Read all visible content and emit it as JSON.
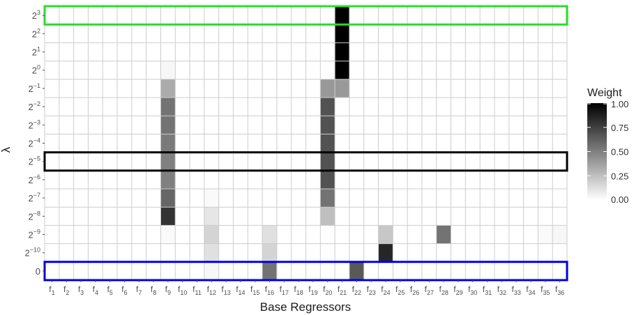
{
  "chart_data": {
    "type": "heatmap",
    "xlabel": "Base Regressors",
    "ylabel": "λ",
    "x_categories": [
      "f1",
      "f2",
      "f3",
      "f4",
      "f5",
      "f6",
      "f7",
      "f8",
      "f9",
      "f10",
      "f11",
      "f12",
      "f13",
      "f14",
      "f15",
      "f16",
      "f17",
      "f18",
      "f19",
      "f20",
      "f21",
      "f22",
      "f23",
      "f24",
      "f25",
      "f26",
      "f27",
      "f28",
      "f29",
      "f30",
      "f31",
      "f32",
      "f33",
      "f34",
      "f35",
      "f36"
    ],
    "y_categories": [
      {
        "label": "2",
        "sup": "3"
      },
      {
        "label": "2",
        "sup": "2"
      },
      {
        "label": "2",
        "sup": "1"
      },
      {
        "label": "2",
        "sup": "0"
      },
      {
        "label": "2",
        "sup": "−1"
      },
      {
        "label": "2",
        "sup": "−2"
      },
      {
        "label": "2",
        "sup": "−3"
      },
      {
        "label": "2",
        "sup": "−4"
      },
      {
        "label": "2",
        "sup": "−5"
      },
      {
        "label": "2",
        "sup": "−6"
      },
      {
        "label": "2",
        "sup": "−7"
      },
      {
        "label": "2",
        "sup": "−8"
      },
      {
        "label": "2",
        "sup": "−9"
      },
      {
        "label": "2",
        "sup": "−10"
      },
      {
        "label": "0",
        "sup": ""
      }
    ],
    "weights": [
      [
        0,
        0,
        0,
        0,
        0,
        0,
        0,
        0,
        0,
        0,
        0,
        0,
        0,
        0,
        0,
        0,
        0,
        0,
        0,
        0,
        1.0,
        0,
        0,
        0,
        0,
        0,
        0,
        0,
        0,
        0,
        0,
        0,
        0,
        0,
        0,
        0
      ],
      [
        0,
        0,
        0,
        0,
        0,
        0,
        0,
        0,
        0,
        0,
        0,
        0,
        0,
        0,
        0,
        0,
        0,
        0,
        0,
        0,
        1.0,
        0,
        0,
        0,
        0,
        0,
        0,
        0,
        0,
        0,
        0,
        0,
        0,
        0,
        0,
        0
      ],
      [
        0,
        0,
        0,
        0,
        0,
        0,
        0,
        0,
        0,
        0,
        0,
        0,
        0,
        0,
        0,
        0,
        0,
        0,
        0,
        0,
        1.0,
        0,
        0,
        0,
        0,
        0,
        0,
        0,
        0,
        0,
        0,
        0,
        0,
        0,
        0,
        0
      ],
      [
        0,
        0,
        0,
        0,
        0,
        0,
        0,
        0,
        0.03,
        0,
        0,
        0,
        0,
        0,
        0,
        0,
        0,
        0,
        0,
        0,
        1.0,
        0,
        0,
        0,
        0,
        0,
        0,
        0,
        0,
        0,
        0,
        0,
        0,
        0,
        0,
        0
      ],
      [
        0,
        0,
        0,
        0,
        0,
        0,
        0,
        0,
        0.33,
        0,
        0,
        0,
        0,
        0,
        0,
        0,
        0,
        0,
        0,
        0.4,
        0.4,
        0,
        0,
        0,
        0,
        0,
        0,
        0,
        0,
        0,
        0,
        0,
        0,
        0,
        0,
        0
      ],
      [
        0,
        0,
        0,
        0,
        0,
        0,
        0,
        0,
        0.55,
        0,
        0,
        0,
        0,
        0,
        0,
        0,
        0,
        0,
        0,
        0.68,
        0,
        0,
        0,
        0,
        0,
        0,
        0,
        0,
        0,
        0,
        0,
        0,
        0,
        0,
        0,
        0
      ],
      [
        0,
        0,
        0,
        0,
        0,
        0,
        0,
        0,
        0.55,
        0,
        0,
        0,
        0,
        0,
        0,
        0,
        0,
        0,
        0,
        0.68,
        0,
        0,
        0,
        0,
        0,
        0,
        0,
        0,
        0,
        0,
        0,
        0,
        0,
        0,
        0,
        0
      ],
      [
        0,
        0,
        0,
        0,
        0,
        0,
        0,
        0,
        0.52,
        0,
        0,
        0,
        0,
        0,
        0,
        0,
        0,
        0,
        0,
        0.68,
        0,
        0,
        0,
        0,
        0,
        0,
        0,
        0,
        0,
        0,
        0,
        0,
        0,
        0,
        0,
        0
      ],
      [
        0,
        0,
        0,
        0,
        0,
        0,
        0,
        0,
        0.5,
        0,
        0,
        0,
        0,
        0,
        0,
        0,
        0,
        0,
        0,
        0.68,
        0,
        0,
        0,
        0,
        0,
        0,
        0,
        0,
        0,
        0,
        0,
        0,
        0,
        0,
        0,
        0
      ],
      [
        0,
        0,
        0,
        0,
        0,
        0,
        0,
        0,
        0.5,
        0,
        0,
        0,
        0,
        0,
        0,
        0,
        0,
        0,
        0,
        0.68,
        0,
        0,
        0,
        0,
        0,
        0,
        0,
        0,
        0,
        0,
        0,
        0,
        0,
        0,
        0,
        0
      ],
      [
        0,
        0,
        0,
        0,
        0,
        0,
        0,
        0,
        0.6,
        0,
        0,
        0.02,
        0,
        0,
        0,
        0,
        0,
        0,
        0,
        0.55,
        0,
        0,
        0,
        0,
        0,
        0,
        0,
        0,
        0,
        0,
        0,
        0,
        0,
        0,
        0,
        0
      ],
      [
        0,
        0,
        0,
        0,
        0,
        0,
        0,
        0,
        0.8,
        0,
        0,
        0.1,
        0,
        0,
        0,
        0,
        0,
        0,
        0,
        0.25,
        0,
        0,
        0,
        0,
        0,
        0,
        0,
        0,
        0,
        0,
        0,
        0,
        0,
        0,
        0,
        0
      ],
      [
        0,
        0,
        0,
        0,
        0,
        0,
        0,
        0,
        0.02,
        0,
        0,
        0.17,
        0,
        0,
        0,
        0.12,
        0,
        0,
        0,
        0,
        0,
        0,
        0,
        0.22,
        0,
        0,
        0,
        0.55,
        0,
        0,
        0,
        0,
        0,
        0,
        0.02,
        0.03
      ],
      [
        0,
        0,
        0,
        0,
        0,
        0,
        0,
        0,
        0,
        0,
        0,
        0.12,
        0,
        0,
        0,
        0.17,
        0,
        0,
        0,
        0,
        0,
        0,
        0,
        0.85,
        0,
        0,
        0,
        0,
        0,
        0,
        0,
        0,
        0,
        0,
        0,
        0
      ],
      [
        0,
        0,
        0,
        0,
        0,
        0,
        0,
        0,
        0,
        0,
        0,
        0.03,
        0,
        0,
        0,
        0.55,
        0,
        0,
        0,
        0,
        0,
        0.65,
        0,
        0,
        0,
        0,
        0,
        0,
        0,
        0,
        0,
        0,
        0,
        0,
        0,
        0
      ]
    ],
    "colorbar": {
      "title": "Weight",
      "range": [
        0,
        1
      ],
      "ticks": [
        "1.00",
        "0.75",
        "0.50",
        "0.25",
        "0.00"
      ],
      "colors": [
        "#ffffff",
        "#000000"
      ]
    },
    "highlight_rows": [
      {
        "row": 0,
        "color": "#22e022"
      },
      {
        "row": 8,
        "color": "#000000"
      },
      {
        "row": 14,
        "color": "#0000dd"
      }
    ],
    "grid": true
  }
}
